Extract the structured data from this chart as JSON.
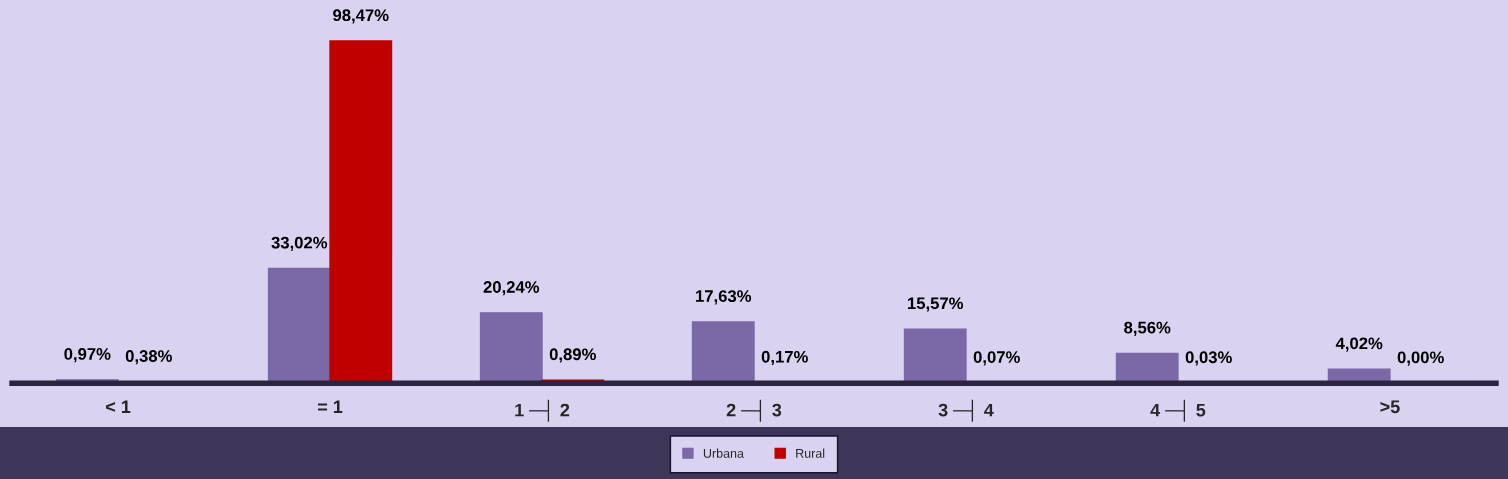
{
  "chart_data": {
    "type": "bar",
    "categories": [
      "< 1",
      "= 1",
      "1 ─┤ 2",
      "2 ─┤ 3",
      "3 ─┤ 4",
      "4 ─┤ 5",
      ">5"
    ],
    "series": [
      {
        "name": "Urbana",
        "color": "#7b68a6",
        "values": [
          0.97,
          33.02,
          20.24,
          17.63,
          15.57,
          8.56,
          4.02
        ],
        "value_labels": [
          "0,97%",
          "33,02%",
          "20,24%",
          "17,63%",
          "15,57%",
          "8,56%",
          "4,02%"
        ]
      },
      {
        "name": "Rural",
        "color": "#c00000",
        "values": [
          0.38,
          98.47,
          0.89,
          0.17,
          0.07,
          0.03,
          0.0
        ],
        "value_labels": [
          "0,38%",
          "98,47%",
          "0,89%",
          "0,17%",
          "0,07%",
          "0,03%",
          "0,00%"
        ]
      }
    ],
    "legend": "bottom",
    "grid": false
  }
}
